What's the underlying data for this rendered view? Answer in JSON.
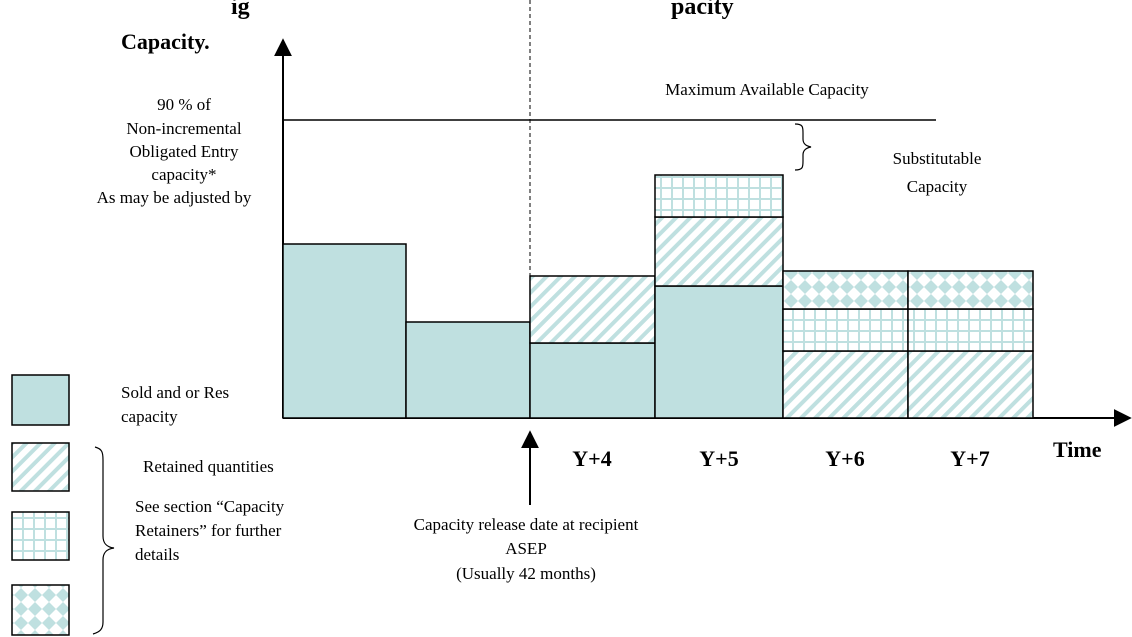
{
  "colors": {
    "fill": "#bfe0e0",
    "hatch": "#bfe0e0",
    "outline": "#000000",
    "background": "#ffffff"
  },
  "header": {
    "title_fragment": "ig                                  pacity"
  },
  "axes": {
    "y_label": "Capacity.",
    "x_label": "Time"
  },
  "left_note": {
    "lines": [
      "90 % of",
      "Non-incremental",
      "Obligated Entry",
      "capacity*",
      "As may be adjusted by"
    ]
  },
  "max_line": {
    "label": "Maximum Available Capacity"
  },
  "substitutable": {
    "lines": [
      "Substitutable",
      "Capacity"
    ]
  },
  "year_labels": [
    "Y+4",
    "Y+5",
    "Y+6",
    "Y+7"
  ],
  "release_note": {
    "lines": [
      "Capacity release date at recipient",
      "ASEP",
      "(Usually 42 months)"
    ]
  },
  "legend": {
    "sold_lines": [
      "Sold and or Res",
      "capacity"
    ],
    "retained_label": "Retained quantities",
    "see_section_lines": [
      "See section “Capacity",
      "Retainers” for further",
      "details"
    ]
  }
}
